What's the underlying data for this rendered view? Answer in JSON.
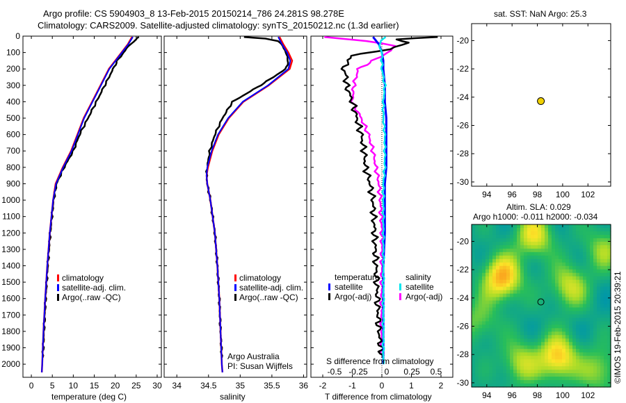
{
  "header": {
    "line1": "Argo profile: CS 5904903_8 13-Feb-2015 20150214_786 24.281S 98.278E",
    "line2": "Climatology: CARS2009. Satellite-adjusted climatology: synTS_20150212.nc (1.3d earlier)"
  },
  "footer_stamp": "©IMOS 19-Feb-2015 20:39:21",
  "colors": {
    "climatology": "#ff0000",
    "satellite": "#0000ff",
    "argo": "#000000",
    "salinity_satellite": "#00e5ee",
    "salinity_argo": "#ff00ff"
  },
  "chart_data": [
    {
      "type": "line",
      "panel": "temperature",
      "xlabel": "temperature (deg C)",
      "ylabel": "",
      "xlim": [
        -2,
        31
      ],
      "ylim": [
        2080,
        0
      ],
      "x_ticks": [
        0,
        5,
        10,
        15,
        20,
        25,
        30
      ],
      "y_ticks": [
        0,
        100,
        200,
        300,
        400,
        500,
        600,
        700,
        800,
        900,
        1000,
        1100,
        1200,
        1300,
        1400,
        1500,
        1600,
        1700,
        1800,
        1900,
        2000
      ],
      "legend": [
        "climatology",
        "satellite-adj. clim.",
        "Argo(..raw -QC)"
      ],
      "series": [
        {
          "name": "climatology",
          "color": "#ff0000",
          "depth": [
            5,
            50,
            100,
            150,
            200,
            300,
            400,
            500,
            600,
            700,
            800,
            900,
            1000,
            1200,
            1400,
            1600,
            1800,
            2000,
            2050
          ],
          "values": [
            24,
            23,
            21.5,
            20,
            18.5,
            16.5,
            14.5,
            12.5,
            11,
            9.5,
            7.5,
            5.8,
            5.2,
            4.4,
            3.8,
            3.3,
            2.9,
            2.6,
            2.5
          ]
        },
        {
          "name": "satellite-adj. clim.",
          "color": "#0000ff",
          "depth": [
            5,
            50,
            100,
            150,
            200,
            300,
            400,
            500,
            600,
            700,
            800,
            900,
            1000,
            1200,
            1400,
            1600,
            1800,
            2000,
            2050
          ],
          "values": [
            24.2,
            23.1,
            21.6,
            20.1,
            18.6,
            16.6,
            14.6,
            12.6,
            11.1,
            9.6,
            7.6,
            5.9,
            5.2,
            4.4,
            3.8,
            3.3,
            2.9,
            2.6,
            2.5
          ]
        },
        {
          "name": "Argo(..raw -QC)",
          "color": "#000000",
          "depth": [
            5,
            20,
            50,
            100,
            150,
            200,
            300,
            400,
            500,
            600,
            700,
            800,
            900,
            1000,
            1200,
            1400,
            1600,
            1800,
            1960
          ],
          "values": [
            25.5,
            25,
            23.5,
            22,
            20.5,
            19.5,
            17.5,
            15.5,
            13.5,
            11.5,
            10,
            7.8,
            6,
            5.3,
            4.5,
            3.9,
            3.4,
            3,
            2.7
          ]
        }
      ]
    },
    {
      "type": "line",
      "panel": "salinity",
      "xlabel": "salinity",
      "xlim": [
        33.8,
        36.05
      ],
      "ylim": [
        2080,
        0
      ],
      "x_ticks": [
        34,
        34.5,
        35,
        35.5,
        36
      ],
      "legend": [
        "climatology",
        "satellite-adj. clim.",
        "Argo(..raw -QC)"
      ],
      "annotation": [
        "Argo Australia",
        "PI: Susan Wijffels"
      ],
      "series": [
        {
          "name": "climatology",
          "color": "#ff0000",
          "depth": [
            5,
            50,
            100,
            150,
            200,
            300,
            400,
            500,
            600,
            700,
            800,
            850,
            900,
            1000,
            1200,
            1400,
            1600,
            1800,
            2000,
            2050
          ],
          "values": [
            35.62,
            35.68,
            35.76,
            35.82,
            35.78,
            35.45,
            35.05,
            34.82,
            34.66,
            34.56,
            34.49,
            34.47,
            34.48,
            34.53,
            34.6,
            34.64,
            34.67,
            34.69,
            34.71,
            34.72
          ]
        },
        {
          "name": "satellite-adj. clim.",
          "color": "#0000ff",
          "depth": [
            5,
            50,
            100,
            150,
            200,
            300,
            400,
            500,
            600,
            700,
            800,
            850,
            900,
            1000,
            1200,
            1400,
            1600,
            1800,
            2000,
            2050
          ],
          "values": [
            35.6,
            35.66,
            35.74,
            35.79,
            35.76,
            35.44,
            35.04,
            34.81,
            34.65,
            34.55,
            34.48,
            34.47,
            34.48,
            34.53,
            34.6,
            34.64,
            34.67,
            34.69,
            34.71,
            34.72
          ]
        },
        {
          "name": "Argo(..raw -QC)",
          "color": "#000000",
          "depth": [
            5,
            15,
            30,
            60,
            100,
            150,
            200,
            300,
            400,
            500,
            600,
            700,
            800,
            850,
            900,
            1000,
            1200,
            1400,
            1600,
            1800,
            1960
          ],
          "values": [
            35.05,
            35.4,
            35.6,
            35.68,
            35.72,
            35.76,
            35.72,
            35.32,
            34.88,
            34.72,
            34.6,
            34.52,
            34.48,
            34.47,
            34.48,
            34.53,
            34.6,
            34.64,
            34.67,
            34.69,
            34.71
          ]
        }
      ]
    },
    {
      "type": "line",
      "panel": "difference",
      "xlabel": "T difference from climatology",
      "top_label": "S difference from climatology",
      "xlim": [
        -2.4,
        2.4
      ],
      "ylim": [
        2080,
        0
      ],
      "x_ticks": [
        -2,
        -1,
        0,
        1,
        2
      ],
      "s_ticks": [
        "-0.5",
        "-0.25",
        "0",
        "0.25",
        "0.5"
      ],
      "legend_titles": [
        "temperature",
        "salinity"
      ],
      "legend": [
        "satellite",
        "Argo(-adj)",
        "satellite",
        "Argo(-adj)"
      ],
      "series": [
        {
          "name": "satellite",
          "group": "temperature",
          "color": "#0000ff",
          "depth": [
            5,
            50,
            100,
            150,
            200,
            300,
            400,
            500,
            600,
            700,
            800,
            900,
            1000,
            1200,
            1400,
            1600,
            1800,
            2000
          ],
          "values": [
            -0.3,
            -0.1,
            0,
            0.05,
            0.05,
            0.1,
            0.1,
            0.15,
            0.15,
            0.15,
            0.15,
            0.1,
            0.1,
            0.1,
            0.05,
            0.05,
            0.05,
            0.05
          ]
        },
        {
          "name": "Argo(-adj)",
          "group": "temperature",
          "color": "#000000",
          "depth": [
            5,
            20,
            40,
            80,
            120,
            160,
            200,
            250,
            300,
            400,
            500,
            600,
            700,
            800,
            900,
            1000,
            1200,
            1400,
            1600,
            1800,
            1960
          ],
          "values": [
            1.8,
            0.5,
            0.9,
            0.2,
            -1,
            -1.2,
            -1.3,
            -1.2,
            -1.2,
            -1,
            -0.85,
            -0.7,
            -0.6,
            -0.55,
            -0.4,
            -0.3,
            -0.25,
            -0.2,
            -0.15,
            -0.1,
            0
          ]
        },
        {
          "name": "satellite",
          "group": "salinity",
          "color": "#00e5ee",
          "depth": [
            5,
            50,
            100,
            200,
            300,
            400,
            500,
            600,
            700,
            800,
            900,
            1000,
            1200,
            1400,
            1600,
            1800,
            2000
          ],
          "values": [
            0.1,
            -0.1,
            0,
            0,
            0.1,
            0.05,
            0.05,
            0.1,
            0.1,
            0.1,
            0.05,
            0.05,
            0.05,
            0.05,
            0.05,
            0.05,
            0.05
          ]
        },
        {
          "name": "Argo(-adj)",
          "group": "salinity",
          "color": "#ff00ff",
          "depth": [
            5,
            30,
            60,
            100,
            150,
            200,
            300,
            400,
            500,
            600,
            700,
            800,
            900,
            1000,
            1200,
            1400,
            1600,
            1800,
            1960
          ],
          "values": [
            -2,
            -0.5,
            0.5,
            0.2,
            -0.3,
            -0.8,
            -0.95,
            -1,
            -0.7,
            -0.45,
            -0.3,
            -0.2,
            -0.1,
            -0.05,
            0,
            0,
            0,
            0,
            0
          ]
        }
      ]
    },
    {
      "type": "scatter",
      "panel": "location",
      "title": "sat. SST: NaN Argo: 25.3",
      "xlim": [
        92.8,
        103.8
      ],
      "ylim": [
        -30.3,
        -18.8
      ],
      "x_ticks": [
        94,
        96,
        98,
        100,
        102
      ],
      "y_ticks": [
        -20,
        -22,
        -24,
        -26,
        -28,
        -30
      ],
      "points": [
        {
          "x": 98.278,
          "y": -24.281
        }
      ]
    },
    {
      "type": "heatmap",
      "panel": "altimetry",
      "title_line1": "Altim. SLA: 0.029",
      "title_line2": "Argo h1000: -0.011 h2000: -0.034",
      "xlim": [
        92.8,
        103.8
      ],
      "ylim": [
        -30.3,
        -18.8
      ],
      "x_ticks": [
        94,
        96,
        98,
        100,
        102
      ],
      "y_ticks": [
        -20,
        -22,
        -24,
        -26,
        -28,
        -30
      ],
      "points": [
        {
          "x": 98.278,
          "y": -24.281
        }
      ]
    }
  ]
}
